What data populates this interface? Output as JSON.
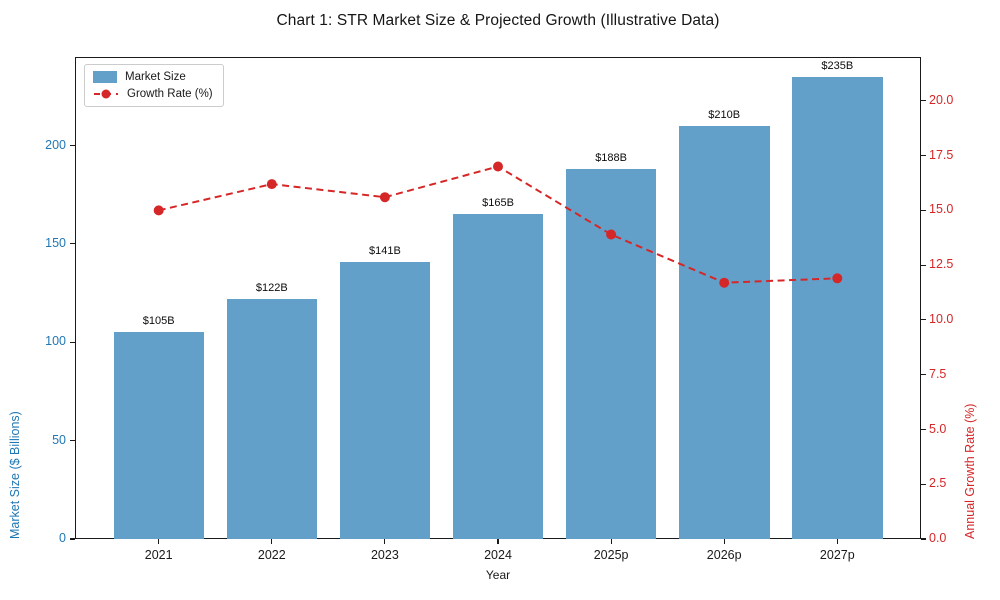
{
  "chart_data": {
    "type": "bar+line",
    "title": "Chart 1: STR Market Size & Projected Growth (Illustrative Data)",
    "categories": [
      "2021",
      "2022",
      "2023",
      "2024",
      "2025p",
      "2026p",
      "2027p"
    ],
    "series": [
      {
        "name": "Market Size",
        "type": "bar",
        "axis": "left",
        "color": "#62a0ca",
        "values": [
          105,
          122,
          141,
          165,
          188,
          210,
          235
        ],
        "value_labels": [
          "$105B",
          "$122B",
          "$141B",
          "$165B",
          "$188B",
          "$210B",
          "$235B"
        ]
      },
      {
        "name": "Growth Rate (%)",
        "type": "line",
        "axis": "right",
        "color": "#d62728",
        "line_style": "dashed",
        "marker": "circle",
        "values": [
          15.0,
          16.2,
          15.6,
          17.0,
          13.9,
          11.7,
          11.9
        ]
      }
    ],
    "xlabel": "Year",
    "ylabel_left": "Market Size ($ Billions)",
    "ylabel_right": "Annual Growth Rate (%)",
    "ylim_left": [
      0,
      245
    ],
    "ylim_right": [
      0,
      22
    ],
    "yticks_left": [
      0,
      50,
      100,
      150,
      200
    ],
    "yticks_right": [
      0,
      2.5,
      5,
      7.5,
      10,
      12.5,
      15,
      17.5,
      20
    ],
    "axis_colors": {
      "left": "#1f77b4",
      "right": "#d62728"
    },
    "legend_position": "upper left",
    "grid": false
  }
}
